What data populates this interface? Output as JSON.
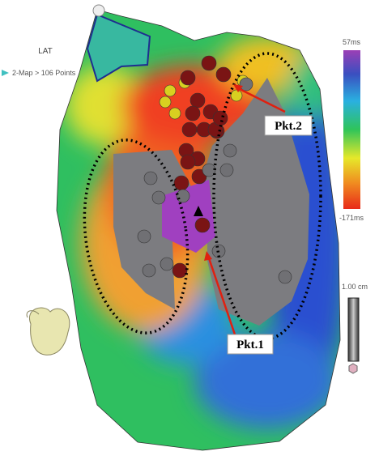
{
  "header": {
    "title": "LAT",
    "subtitle": "2-Map > 106 Points"
  },
  "colorbar": {
    "max_label": "57ms",
    "min_label": "-171ms"
  },
  "scale": {
    "label": "1.00 cm"
  },
  "annotations": [
    {
      "label": "Pkt.2"
    },
    {
      "label": "Pkt.1"
    }
  ]
}
